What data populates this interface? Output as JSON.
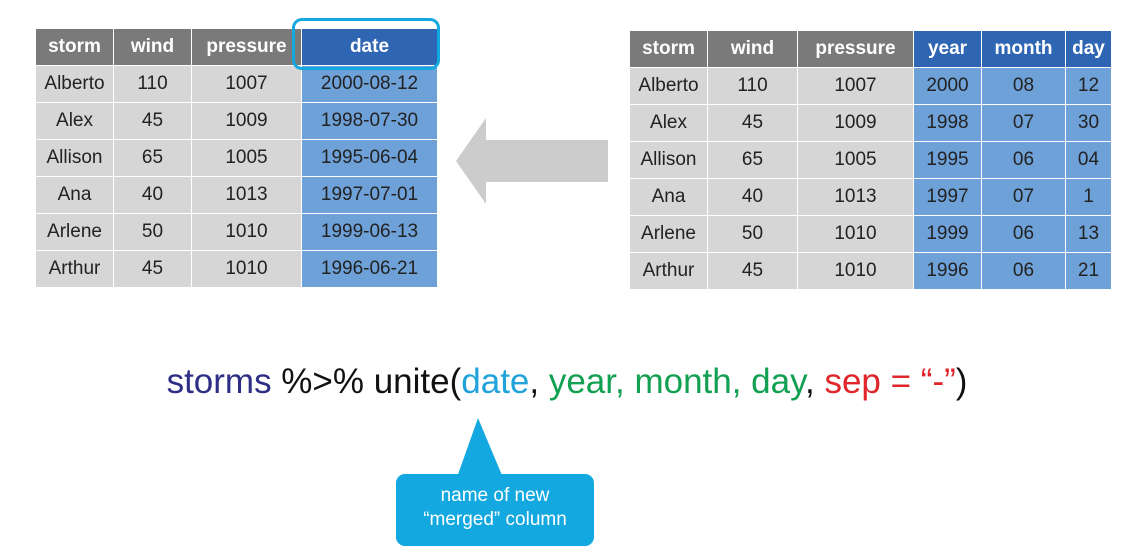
{
  "left_table": {
    "headers": [
      "storm",
      "wind",
      "pressure",
      "date"
    ],
    "rows": [
      [
        "Alberto",
        "110",
        "1007",
        "2000-08-12"
      ],
      [
        "Alex",
        "45",
        "1009",
        "1998-07-30"
      ],
      [
        "Allison",
        "65",
        "1005",
        "1995-06-04"
      ],
      [
        "Ana",
        "40",
        "1013",
        "1997-07-01"
      ],
      [
        "Arlene",
        "50",
        "1010",
        "1999-06-13"
      ],
      [
        "Arthur",
        "45",
        "1010",
        "1996-06-21"
      ]
    ]
  },
  "right_table": {
    "headers": [
      "storm",
      "wind",
      "pressure",
      "year",
      "month",
      "day"
    ],
    "rows": [
      [
        "Alberto",
        "110",
        "1007",
        "2000",
        "08",
        "12"
      ],
      [
        "Alex",
        "45",
        "1009",
        "1998",
        "07",
        "30"
      ],
      [
        "Allison",
        "65",
        "1005",
        "1995",
        "06",
        "04"
      ],
      [
        "Ana",
        "40",
        "1013",
        "1997",
        "07",
        "1"
      ],
      [
        "Arlene",
        "50",
        "1010",
        "1999",
        "06",
        "13"
      ],
      [
        "Arthur",
        "45",
        "1010",
        "1996",
        "06",
        "21"
      ]
    ]
  },
  "code": {
    "object": "storms",
    "pipe": " %>% ",
    "func": "unite(",
    "arg_new": "date",
    "sep1": ", ",
    "arg_cols": "year, month, day",
    "sep2": ", ",
    "arg_sep": "sep = “-”",
    "close": ")"
  },
  "callout": {
    "line1": "name of new",
    "line2": "“merged” column"
  },
  "colors": {
    "header_gray": "#7a7a7a",
    "header_blue": "#2f66b3",
    "cell_gray": "#d6d6d6",
    "cell_blue": "#6fa1d9",
    "accent_cyan": "#14a8e0",
    "arrow_gray": "#cccccc"
  }
}
